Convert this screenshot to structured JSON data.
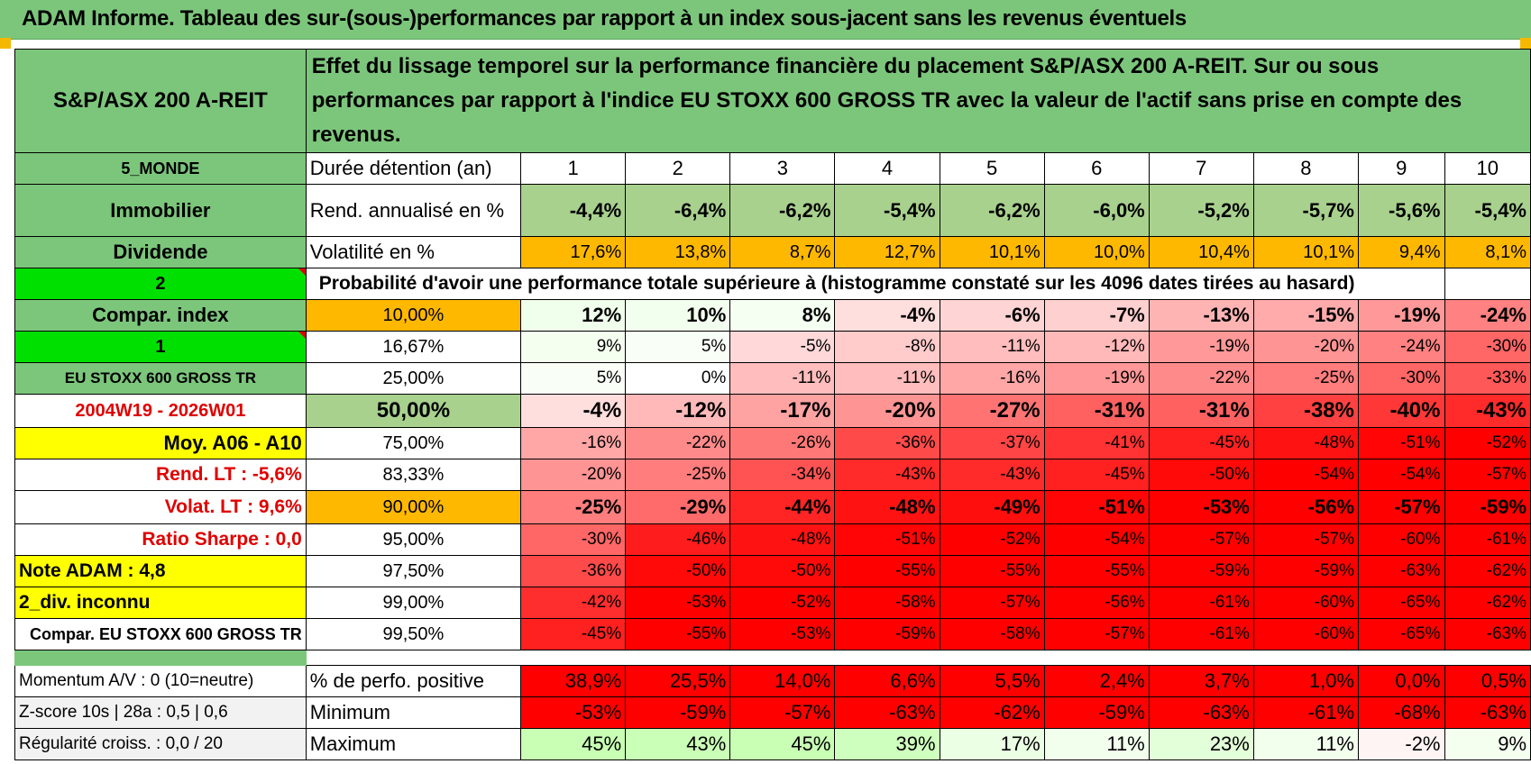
{
  "title": "ADAM Informe. Tableau des sur-(sous-)performances par rapport à un index sous-jacent sans les revenus éventuels",
  "header": {
    "asset": "S&P/ASX 200 A-REIT",
    "description": "Effet du lissage temporel sur la performance financière du placement S&P/ASX 200 A-REIT. Sur ou sous performances par rapport à l'indice EU STOXX 600 GROSS TR avec la valeur de l'actif sans prise en compte des revenus."
  },
  "side": {
    "region": "5_MONDE",
    "category": "Immobilier",
    "type": "Dividende",
    "sel1": "2",
    "compar_index": "Compar. index",
    "sel2": "1",
    "index_name": "EU STOXX 600 GROSS TR",
    "period": "2004W19 - 2026W01",
    "moy": "Moy. A06 - A10",
    "rend_lt": "Rend. LT :    -5,6%",
    "volat_lt": "Volat. LT :    9,6%",
    "sharpe": "Ratio Sharpe :     0,0",
    "note": "Note ADAM : 4,8",
    "div": "2_div. inconnu",
    "compar": "Compar. EU STOXX 600 GROSS TR"
  },
  "labels": {
    "duree": "Durée détention (an)",
    "rend": "Rend. annualisé en %",
    "vol": "Volatilité en %",
    "proba": "Probabilité d'avoir une performance totale supérieure à (histogramme constaté sur les 4096 dates tirées au hasard)"
  },
  "years": [
    "1",
    "2",
    "3",
    "4",
    "5",
    "6",
    "7",
    "8",
    "9",
    "10"
  ],
  "rend": [
    "-4,4%",
    "-6,4%",
    "-6,2%",
    "-5,4%",
    "-6,2%",
    "-6,0%",
    "-5,2%",
    "-5,7%",
    "-5,6%",
    "-5,4%"
  ],
  "vol": [
    "17,6%",
    "13,8%",
    "8,7%",
    "12,7%",
    "10,1%",
    "10,0%",
    "10,4%",
    "10,1%",
    "9,4%",
    "8,1%"
  ],
  "pct_rows": [
    {
      "p": "10,00%",
      "v": [
        "12%",
        "10%",
        "8%",
        "-4%",
        "-6%",
        "-7%",
        "-13%",
        "-15%",
        "-19%",
        "-24%"
      ]
    },
    {
      "p": "16,67%",
      "v": [
        "9%",
        "5%",
        "-5%",
        "-8%",
        "-11%",
        "-12%",
        "-19%",
        "-20%",
        "-24%",
        "-30%"
      ]
    },
    {
      "p": "25,00%",
      "v": [
        "5%",
        "0%",
        "-11%",
        "-11%",
        "-16%",
        "-19%",
        "-22%",
        "-25%",
        "-30%",
        "-33%"
      ]
    },
    {
      "p": "50,00%",
      "v": [
        "-4%",
        "-12%",
        "-17%",
        "-20%",
        "-27%",
        "-31%",
        "-31%",
        "-38%",
        "-40%",
        "-43%"
      ]
    },
    {
      "p": "75,00%",
      "v": [
        "-16%",
        "-22%",
        "-26%",
        "-36%",
        "-37%",
        "-41%",
        "-45%",
        "-48%",
        "-51%",
        "-52%"
      ]
    },
    {
      "p": "83,33%",
      "v": [
        "-20%",
        "-25%",
        "-34%",
        "-43%",
        "-43%",
        "-45%",
        "-50%",
        "-54%",
        "-54%",
        "-57%"
      ]
    },
    {
      "p": "90,00%",
      "v": [
        "-25%",
        "-29%",
        "-44%",
        "-48%",
        "-49%",
        "-51%",
        "-53%",
        "-56%",
        "-57%",
        "-59%"
      ]
    },
    {
      "p": "95,00%",
      "v": [
        "-30%",
        "-46%",
        "-48%",
        "-51%",
        "-52%",
        "-54%",
        "-57%",
        "-57%",
        "-60%",
        "-61%"
      ]
    },
    {
      "p": "97,50%",
      "v": [
        "-36%",
        "-50%",
        "-50%",
        "-55%",
        "-55%",
        "-55%",
        "-59%",
        "-59%",
        "-63%",
        "-62%"
      ]
    },
    {
      "p": "99,00%",
      "v": [
        "-42%",
        "-53%",
        "-52%",
        "-58%",
        "-57%",
        "-56%",
        "-61%",
        "-60%",
        "-65%",
        "-62%"
      ]
    },
    {
      "p": "99,50%",
      "v": [
        "-45%",
        "-55%",
        "-53%",
        "-59%",
        "-58%",
        "-57%",
        "-61%",
        "-60%",
        "-65%",
        "-63%"
      ]
    }
  ],
  "bottom": {
    "momentum": "Momentum A/V : 0 (10=neutre)",
    "zscore": "Z-score 10s | 28a : 0,5 | 0,6",
    "regularite": "Régularité croiss. : 0,0 / 20",
    "pos_label": "% de perfo. positive",
    "min_label": "Minimum",
    "max_label": "Maximum",
    "pos": [
      "38,9%",
      "25,5%",
      "14,0%",
      "6,6%",
      "5,5%",
      "2,4%",
      "3,7%",
      "1,0%",
      "0,0%",
      "0,5%"
    ],
    "min": [
      "-53%",
      "-59%",
      "-57%",
      "-63%",
      "-62%",
      "-59%",
      "-63%",
      "-61%",
      "-68%",
      "-63%"
    ],
    "max": [
      "45%",
      "43%",
      "45%",
      "39%",
      "17%",
      "11%",
      "23%",
      "11%",
      "-2%",
      "9%"
    ]
  },
  "colors": {
    "green_header": "#7cc67c",
    "bright_green": "#00e000",
    "yellow": "#ffff00",
    "orange": "#ffb800",
    "light_green": "#a9d18e",
    "red_text": "#e00000",
    "cell_red": "#ff0000"
  }
}
